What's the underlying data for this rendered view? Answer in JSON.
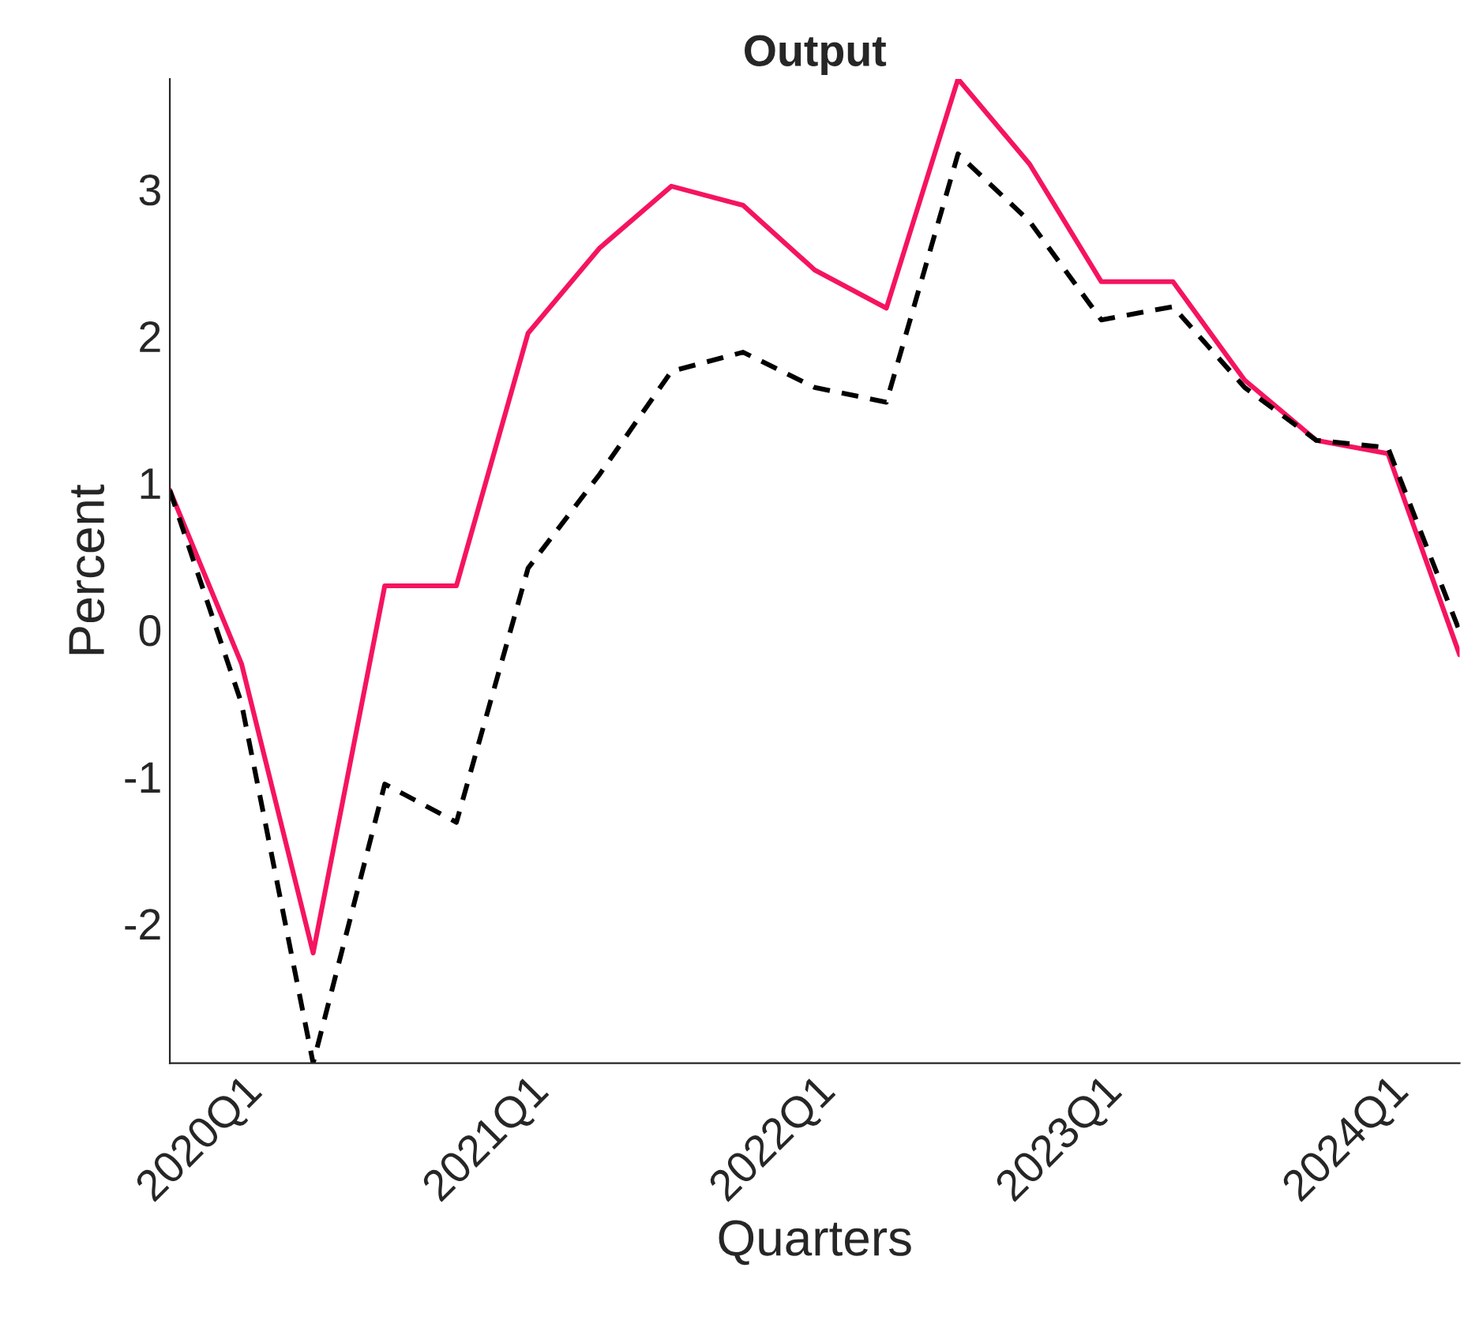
{
  "chart_data": {
    "type": "line",
    "title": "Output",
    "xlabel": "Quarters",
    "ylabel": "Percent",
    "categories": [
      null,
      "2020Q1",
      null,
      null,
      null,
      "2021Q1",
      null,
      null,
      null,
      "2022Q1",
      null,
      null,
      null,
      "2023Q1",
      null,
      null,
      null,
      "2024Q1",
      null
    ],
    "series": [
      {
        "color": "#f5145f",
        "line_style": "solid",
        "values": [
          0.95,
          -0.23,
          -2.2,
          0.3,
          0.3,
          2.02,
          2.6,
          3.02,
          2.89,
          2.45,
          2.19,
          3.75,
          3.17,
          2.37,
          2.37,
          1.7,
          1.29,
          1.2,
          -0.17
        ]
      },
      {
        "color": "#000000",
        "line_style": "dashed",
        "values": [
          0.95,
          -0.5,
          -2.95,
          -1.05,
          -1.31,
          0.42,
          1.06,
          1.76,
          1.89,
          1.65,
          1.55,
          3.24,
          2.78,
          2.11,
          2.2,
          1.65,
          1.29,
          1.24,
          -0.01
        ]
      }
    ],
    "ylim": [
      -2.95,
      3.75
    ],
    "yticks": [
      -2,
      -1,
      0,
      1,
      2,
      3
    ]
  }
}
